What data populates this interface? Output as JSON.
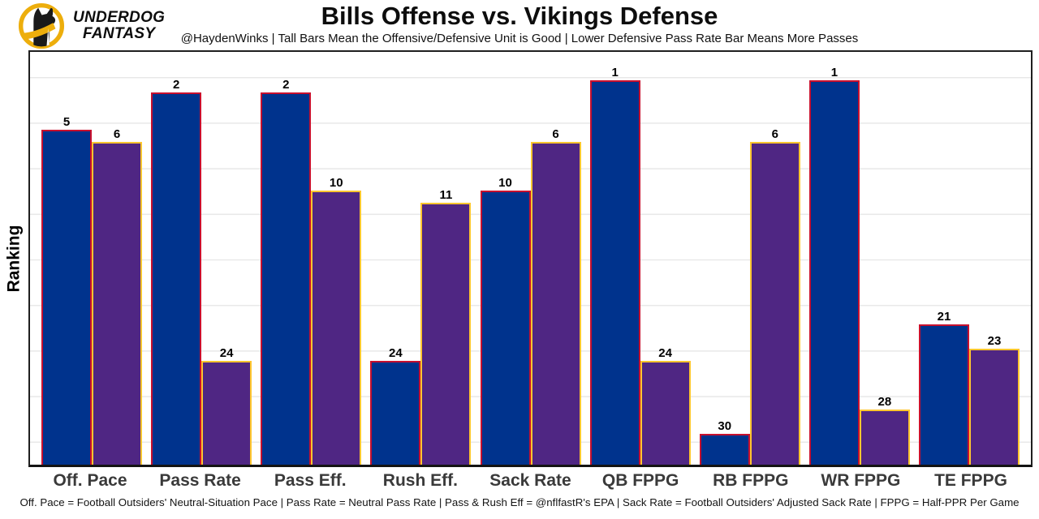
{
  "header": {
    "brand_line1": "UNDERDOG",
    "brand_line2": "FANTASY"
  },
  "chart_data": {
    "type": "bar",
    "title": "Bills Offense vs. Vikings Defense",
    "subtitle": "@HaydenWinks | Tall Bars Mean the Offensive/Defensive Unit is Good | Lower Defensive Pass Rate Bar Means More Passes",
    "ylabel": "Ranking",
    "footnote": "Off. Pace = Football Outsiders' Neutral-Situation Pace | Pass Rate = Neutral Pass Rate | Pass & Rush Eff = @nflfastR's EPA | Sack Rate = Football Outsiders' Adjusted Sack Rate | FPPG = Half-PPR Per Game",
    "categories": [
      "Off. Pace",
      "Pass Rate",
      "Pass Eff.",
      "Rush Eff.",
      "Sack Rate",
      "QB FPPG",
      "RB FPPG",
      "WR FPPG",
      "TE FPPG"
    ],
    "series": [
      {
        "name": "Bills Offense",
        "values": [
          5,
          2,
          2,
          24,
          10,
          1,
          30,
          1,
          21
        ],
        "fill": "#00338D",
        "border": "#C8102E"
      },
      {
        "name": "Vikings Defense",
        "values": [
          6,
          24,
          10,
          11,
          6,
          24,
          6,
          28,
          23
        ],
        "fill": "#4F2683",
        "border": "#FFC62F"
      }
    ],
    "rank_range": [
      1,
      32
    ],
    "rank_best_is_tallest": true,
    "grid": "horizontal-light-gray",
    "legend": "none",
    "colors": {
      "offense_fill": "#00338D",
      "offense_border": "#C8102E",
      "defense_fill": "#4F2683",
      "defense_border": "#FFC62F",
      "brand_gold": "#EDAE0C"
    }
  }
}
